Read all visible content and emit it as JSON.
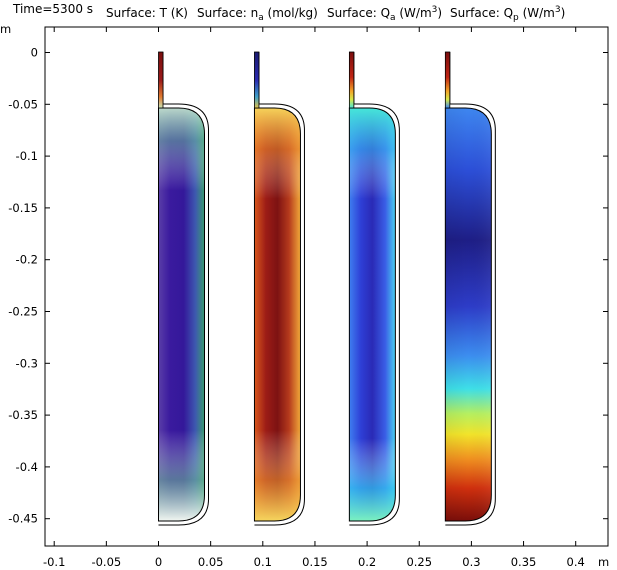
{
  "header": {
    "time": "Time=5300 s",
    "surfaces": [
      {
        "prefix": "Surface: T (K)",
        "sub": "",
        "suffix": "",
        "sup": ""
      },
      {
        "prefix": "Surface: n",
        "sub": "a",
        "suffix": " (mol/kg)",
        "sup": ""
      },
      {
        "prefix": "Surface: Q",
        "sub": "a",
        "suffix": " (W/m",
        "sup": "3",
        "close": ")"
      },
      {
        "prefix": "Surface: Q",
        "sub": "p",
        "suffix": " (W/m",
        "sup": "3",
        "close": ")"
      }
    ]
  },
  "axes": {
    "x_unit": "m",
    "y_unit": "m",
    "x_ticks": [
      "-0.1",
      "-0.05",
      "0",
      "0.05",
      "0.1",
      "0.15",
      "0.2",
      "0.25",
      "0.3",
      "0.35",
      "0.4"
    ],
    "x_values": [
      -0.1,
      -0.05,
      0,
      0.05,
      0.1,
      0.15,
      0.2,
      0.25,
      0.3,
      0.35,
      0.4
    ],
    "y_ticks": [
      "0",
      "-0.05",
      "-0.1",
      "-0.15",
      "-0.2",
      "-0.25",
      "-0.3",
      "-0.35",
      "-0.4",
      "-0.45"
    ],
    "y_values": [
      0,
      -0.05,
      -0.1,
      -0.15,
      -0.2,
      -0.25,
      -0.3,
      -0.35,
      -0.4,
      -0.45
    ],
    "xlim": [
      -0.113,
      0.434
    ],
    "ylim": [
      -0.477,
      0.03
    ]
  },
  "shapes": [
    {
      "name": "temperature",
      "x_offset": 0.0,
      "colormap": "temperature"
    },
    {
      "name": "concentration",
      "x_offset": 0.092,
      "colormap": "concentration"
    },
    {
      "name": "heat-source-a",
      "x_offset": 0.183,
      "colormap": "heat-a"
    },
    {
      "name": "heat-source-p",
      "x_offset": 0.275,
      "colormap": "heat-p"
    }
  ],
  "colors": {
    "background": "#ffffff",
    "frame": "#000000"
  }
}
